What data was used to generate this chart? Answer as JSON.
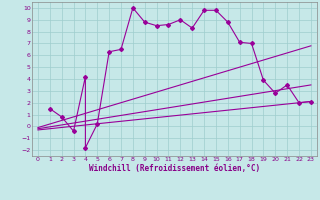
{
  "xlabel": "Windchill (Refroidissement éolien,°C)",
  "background_color": "#c6e8e8",
  "grid_color": "#9ecece",
  "line_color": "#990099",
  "xlim": [
    -0.5,
    23.5
  ],
  "ylim": [
    -2.5,
    10.5
  ],
  "xticks": [
    0,
    1,
    2,
    3,
    4,
    5,
    6,
    7,
    8,
    9,
    10,
    11,
    12,
    13,
    14,
    15,
    16,
    17,
    18,
    19,
    20,
    21,
    22,
    23
  ],
  "yticks": [
    -2,
    -1,
    0,
    1,
    2,
    3,
    4,
    5,
    6,
    7,
    8,
    9,
    10
  ],
  "series1_x": [
    1,
    2,
    3,
    4,
    4,
    5,
    6,
    7,
    8,
    9,
    10,
    11,
    12,
    13,
    14,
    15,
    16,
    17,
    18,
    19,
    20,
    21,
    22,
    23
  ],
  "series1_y": [
    1.5,
    0.8,
    -0.4,
    4.2,
    -1.8,
    0.2,
    6.3,
    6.5,
    10.0,
    8.8,
    8.5,
    8.6,
    9.0,
    8.3,
    9.8,
    9.8,
    8.8,
    7.1,
    7.0,
    3.9,
    2.8,
    3.5,
    2.0,
    2.1
  ],
  "series2_x": [
    0,
    23
  ],
  "series2_y": [
    -0.1,
    6.8
  ],
  "series3_x": [
    0,
    23
  ],
  "series3_y": [
    -0.2,
    3.5
  ],
  "series4_x": [
    0,
    23
  ],
  "series4_y": [
    -0.3,
    2.1
  ]
}
